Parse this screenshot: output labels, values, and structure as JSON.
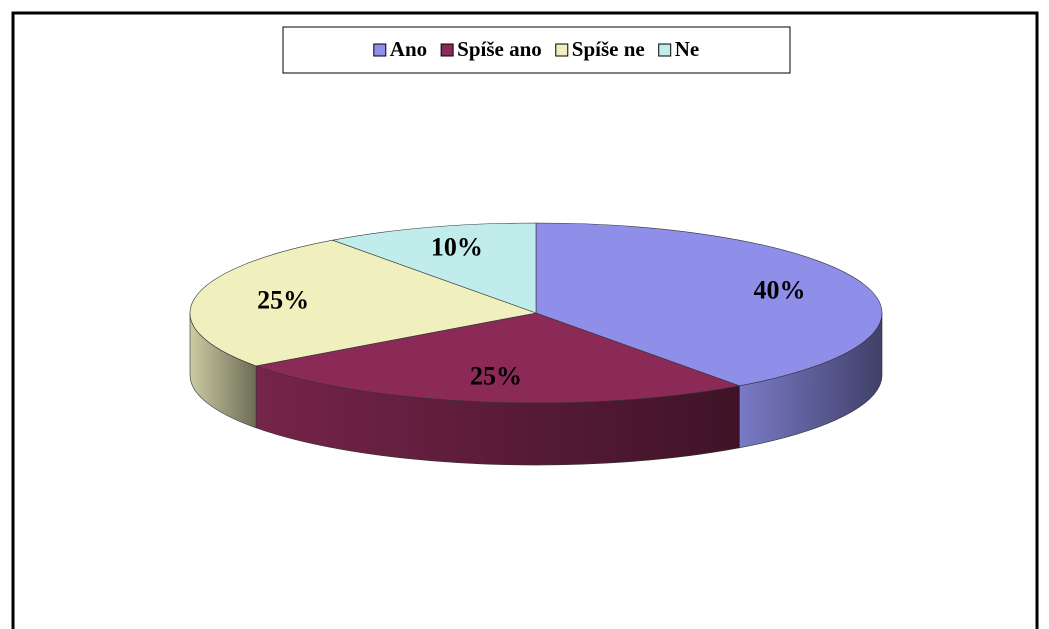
{
  "chart_data": {
    "type": "pie",
    "categories": [
      "Ano",
      "Spíše ano",
      "Spíše ne",
      "Ne"
    ],
    "values": [
      40,
      25,
      25,
      10
    ],
    "value_labels": [
      "40%",
      "25%",
      "25%",
      "10%"
    ],
    "colors": [
      "#8f8fea",
      "#8b2a57",
      "#f0efbe",
      "#c0ecec"
    ],
    "legend": "top"
  }
}
